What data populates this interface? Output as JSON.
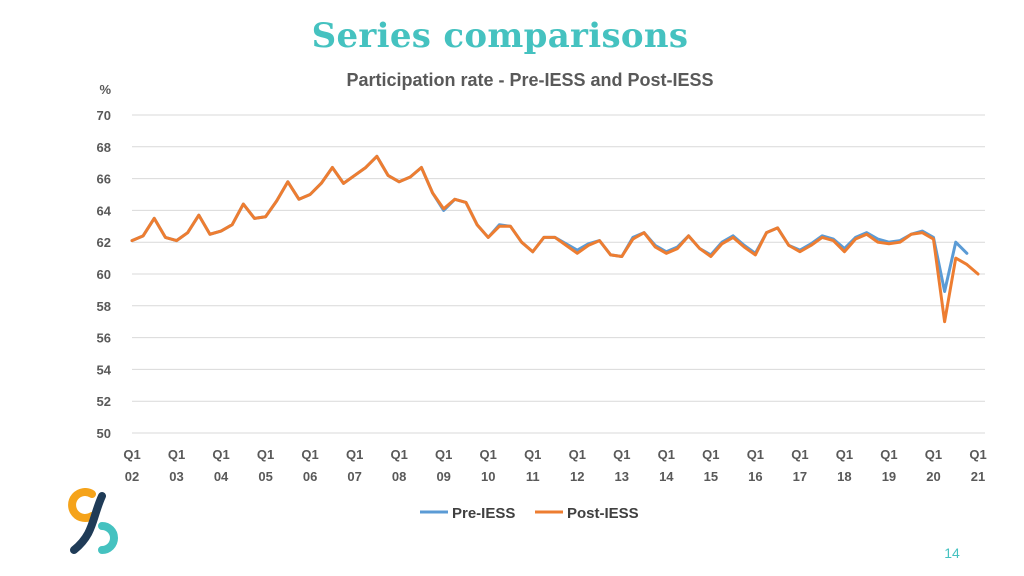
{
  "slide": {
    "title": "Series comparisons",
    "page_number": "14"
  },
  "colors": {
    "title": "#45c2c0",
    "pre_iess": "#5b9bd5",
    "post_iess": "#ed7d31",
    "grid": "#d9d9d9",
    "text": "#595959",
    "logo_orange": "#f5a31a",
    "logo_teal": "#45c2c0",
    "logo_navy": "#1f3b57"
  },
  "logo": {
    "icon": "brand-logo-icon"
  },
  "chart_data": {
    "type": "line",
    "title": "Participation rate - Pre-IESS and Post-IESS",
    "ylabel": "%",
    "xlabel": "",
    "ylim": [
      50,
      70
    ],
    "yticks": [
      50,
      52,
      54,
      56,
      58,
      60,
      62,
      64,
      66,
      68,
      70
    ],
    "grid": true,
    "legend_position": "bottom",
    "x_tick_labels": [
      {
        "top": "Q1",
        "bottom": "02"
      },
      {
        "top": "Q1",
        "bottom": "03"
      },
      {
        "top": "Q1",
        "bottom": "04"
      },
      {
        "top": "Q1",
        "bottom": "05"
      },
      {
        "top": "Q1",
        "bottom": "06"
      },
      {
        "top": "Q1",
        "bottom": "07"
      },
      {
        "top": "Q1",
        "bottom": "08"
      },
      {
        "top": "Q1",
        "bottom": "09"
      },
      {
        "top": "Q1",
        "bottom": "10"
      },
      {
        "top": "Q1",
        "bottom": "11"
      },
      {
        "top": "Q1",
        "bottom": "12"
      },
      {
        "top": "Q1",
        "bottom": "13"
      },
      {
        "top": "Q1",
        "bottom": "14"
      },
      {
        "top": "Q1",
        "bottom": "15"
      },
      {
        "top": "Q1",
        "bottom": "16"
      },
      {
        "top": "Q1",
        "bottom": "17"
      },
      {
        "top": "Q1",
        "bottom": "18"
      },
      {
        "top": "Q1",
        "bottom": "19"
      },
      {
        "top": "Q1",
        "bottom": "20"
      },
      {
        "top": "Q1",
        "bottom": "21"
      }
    ],
    "x_start": "2002-Q1",
    "series": [
      {
        "name": "Pre-IESS",
        "values": [
          62.1,
          62.4,
          63.5,
          62.3,
          62.1,
          62.6,
          63.7,
          62.5,
          62.7,
          63.1,
          64.4,
          63.5,
          63.6,
          64.6,
          65.8,
          64.7,
          65.0,
          65.7,
          66.7,
          65.7,
          66.2,
          66.7,
          67.4,
          66.2,
          65.8,
          66.1,
          66.7,
          65.1,
          64.0,
          64.7,
          64.5,
          63.1,
          62.3,
          63.1,
          63.0,
          62.0,
          61.4,
          62.3,
          62.3,
          61.9,
          61.5,
          61.9,
          62.1,
          61.2,
          61.1,
          62.3,
          62.6,
          61.8,
          61.4,
          61.7,
          62.4,
          61.6,
          61.2,
          62.0,
          62.4,
          61.8,
          61.3,
          62.6,
          62.9,
          61.8,
          61.5,
          61.9,
          62.4,
          62.2,
          61.6,
          62.3,
          62.6,
          62.2,
          62.0,
          62.1,
          62.5,
          62.7,
          62.3,
          58.9,
          62.0,
          61.3
        ],
        "color_key": "pre_iess"
      },
      {
        "name": "Post-IESS",
        "values": [
          62.1,
          62.4,
          63.5,
          62.3,
          62.1,
          62.6,
          63.7,
          62.5,
          62.7,
          63.1,
          64.4,
          63.5,
          63.6,
          64.6,
          65.8,
          64.7,
          65.0,
          65.7,
          66.7,
          65.7,
          66.2,
          66.7,
          67.4,
          66.2,
          65.8,
          66.1,
          66.7,
          65.1,
          64.1,
          64.7,
          64.5,
          63.1,
          62.3,
          63.0,
          63.0,
          62.0,
          61.4,
          62.3,
          62.3,
          61.8,
          61.3,
          61.8,
          62.1,
          61.2,
          61.1,
          62.2,
          62.6,
          61.7,
          61.3,
          61.6,
          62.4,
          61.6,
          61.1,
          61.9,
          62.3,
          61.7,
          61.2,
          62.6,
          62.9,
          61.8,
          61.4,
          61.8,
          62.3,
          62.1,
          61.4,
          62.2,
          62.5,
          62.0,
          61.9,
          62.0,
          62.5,
          62.6,
          62.2,
          57.0,
          61.0,
          60.6,
          60.0
        ],
        "color_key": "post_iess"
      }
    ]
  }
}
